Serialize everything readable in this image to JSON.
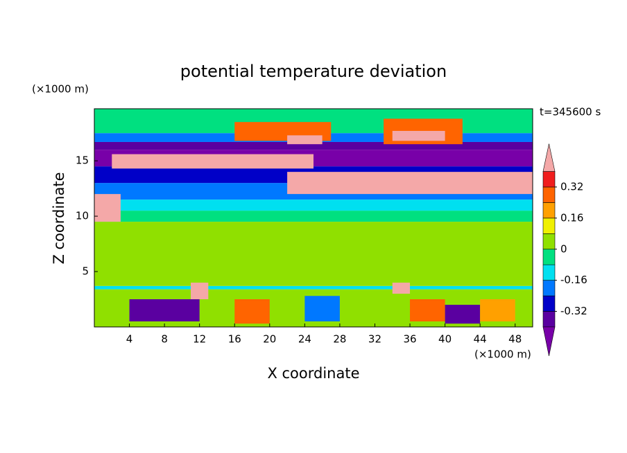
{
  "chart_data": {
    "type": "contour",
    "title": "potential temperature deviation",
    "xlabel": "X coordinate",
    "ylabel": "Z coordinate",
    "x_unit": "(×1000 m)",
    "y_unit": "(×1000 m)",
    "time_label": "t=345600 s",
    "xlim": [
      0,
      50
    ],
    "ylim": [
      0,
      19.7
    ],
    "xticks": [
      4,
      8,
      12,
      16,
      20,
      24,
      28,
      32,
      36,
      40,
      44,
      48
    ],
    "yticks": [
      5,
      10,
      15
    ],
    "levels": [
      -0.4,
      -0.32,
      -0.24,
      -0.16,
      -0.08,
      0,
      0.08,
      0.16,
      0.24,
      0.32,
      0.4
    ],
    "colors": [
      "#7800a8",
      "#5a00a0",
      "#0000c8",
      "#0078ff",
      "#00e0f0",
      "#00e080",
      "#90e000",
      "#f0f000",
      "#ffa000",
      "#ff6400",
      "#f01e1e",
      "#f4a8a8"
    ],
    "colorbar_ticks": [
      -0.32,
      -0.16,
      0,
      0.16,
      0.32
    ],
    "patches": [
      {
        "x": [
          0,
          50
        ],
        "z": [
          0,
          3.4
        ],
        "value": 0.04
      },
      {
        "x": [
          0,
          50
        ],
        "z": [
          3.4,
          3.7
        ],
        "value": -0.12
      },
      {
        "x": [
          0,
          50
        ],
        "z": [
          3.7,
          9.5
        ],
        "value": 0.04
      },
      {
        "x": [
          0,
          50
        ],
        "z": [
          9.5,
          10.5
        ],
        "value": -0.04
      },
      {
        "x": [
          0,
          50
        ],
        "z": [
          10.5,
          11.5
        ],
        "value": -0.12
      },
      {
        "x": [
          0,
          50
        ],
        "z": [
          11.5,
          13
        ],
        "value": -0.2
      },
      {
        "x": [
          0,
          50
        ],
        "z": [
          13,
          14.5
        ],
        "value": -0.28
      },
      {
        "x": [
          0,
          50
        ],
        "z": [
          14.5,
          16
        ],
        "value": -0.44
      },
      {
        "x": [
          0,
          50
        ],
        "z": [
          16,
          16.7
        ],
        "value": -0.36
      },
      {
        "x": [
          0,
          50
        ],
        "z": [
          16.7,
          17.5
        ],
        "value": -0.2
      },
      {
        "x": [
          0,
          50
        ],
        "z": [
          17.5,
          19.7
        ],
        "value": -0.04
      },
      {
        "x": [
          2,
          25
        ],
        "z": [
          14.3,
          15.6
        ],
        "value": 0.44
      },
      {
        "x": [
          22,
          50
        ],
        "z": [
          12,
          14
        ],
        "value": 0.44
      },
      {
        "x": [
          0,
          3
        ],
        "z": [
          9.5,
          12
        ],
        "value": 0.44
      },
      {
        "x": [
          16,
          27
        ],
        "z": [
          16.8,
          18.5
        ],
        "value": 0.28
      },
      {
        "x": [
          22,
          26
        ],
        "z": [
          16.5,
          17.3
        ],
        "value": 0.44
      },
      {
        "x": [
          33,
          42
        ],
        "z": [
          16.5,
          18.8
        ],
        "value": 0.28
      },
      {
        "x": [
          34,
          40
        ],
        "z": [
          16.8,
          17.7
        ],
        "value": 0.44
      },
      {
        "x": [
          4,
          12
        ],
        "z": [
          0.5,
          2.5
        ],
        "value": -0.36
      },
      {
        "x": [
          16,
          20
        ],
        "z": [
          0.3,
          2.5
        ],
        "value": 0.28
      },
      {
        "x": [
          24,
          28
        ],
        "z": [
          0.5,
          2.8
        ],
        "value": -0.2
      },
      {
        "x": [
          36,
          40
        ],
        "z": [
          0.5,
          2.5
        ],
        "value": 0.28
      },
      {
        "x": [
          40,
          44
        ],
        "z": [
          0.3,
          2
        ],
        "value": -0.36
      },
      {
        "x": [
          44,
          48
        ],
        "z": [
          0.5,
          2.5
        ],
        "value": 0.2
      },
      {
        "x": [
          11,
          13
        ],
        "z": [
          2.5,
          4
        ],
        "value": 0.44
      },
      {
        "x": [
          34,
          36
        ],
        "z": [
          3,
          4
        ],
        "value": 0.44
      }
    ]
  }
}
